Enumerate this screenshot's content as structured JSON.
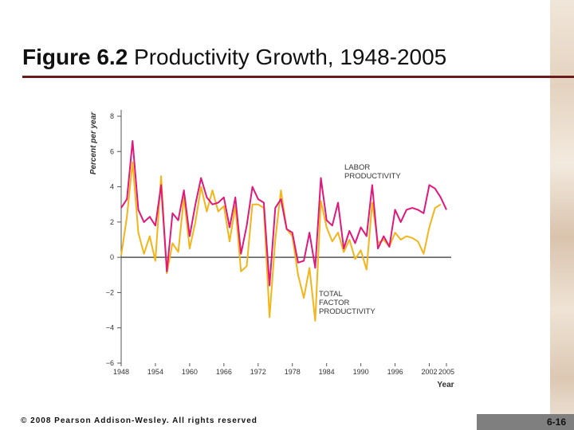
{
  "slide": {
    "title_bold": "Figure 6.2",
    "title_rest": " Productivity Growth, 1948-2005",
    "copyright": "© 2008 Pearson Addison-Wesley. All rights reserved",
    "slide_number": "6-16"
  },
  "colors": {
    "labor": "#e0187c",
    "tfp": "#f2b51a",
    "axis": "#555555",
    "title_rule": "#6b1b1b"
  },
  "chart_data": {
    "type": "line",
    "title": "",
    "xlabel": "Year",
    "ylabel": "Percent per year",
    "xlim": [
      1948,
      2005
    ],
    "ylim": [
      -6,
      8
    ],
    "x_ticks": [
      1948,
      1954,
      1960,
      1966,
      1972,
      1978,
      1984,
      1990,
      1996,
      2002,
      2005
    ],
    "y_ticks": [
      8,
      6,
      4,
      2,
      0,
      -2,
      -4,
      -6
    ],
    "y_tick_labels": [
      "8",
      "6",
      "4",
      "2",
      "0",
      "−2",
      "−4",
      "−6"
    ],
    "series": [
      {
        "name": "LABOR PRODUCTIVITY",
        "label_lines": [
          "LABOR",
          "PRODUCTIVITY"
        ],
        "x": [
          1948,
          1949,
          1950,
          1951,
          1952,
          1953,
          1954,
          1955,
          1956,
          1957,
          1958,
          1959,
          1960,
          1961,
          1962,
          1963,
          1964,
          1965,
          1966,
          1967,
          1968,
          1969,
          1970,
          1971,
          1972,
          1973,
          1974,
          1975,
          1976,
          1977,
          1978,
          1979,
          1980,
          1981,
          1982,
          1983,
          1984,
          1985,
          1986,
          1987,
          1988,
          1989,
          1990,
          1991,
          1992,
          1993,
          1994,
          1995,
          1996,
          1997,
          1998,
          1999,
          2000,
          2001,
          2002,
          2003,
          2004,
          2005
        ],
        "values": [
          2.8,
          3.3,
          6.6,
          2.7,
          2.0,
          2.3,
          1.8,
          4.1,
          -0.8,
          2.5,
          2.1,
          3.8,
          1.2,
          3.0,
          4.5,
          3.4,
          3.0,
          3.1,
          3.4,
          1.7,
          3.4,
          0.2,
          1.8,
          4.0,
          3.3,
          3.1,
          -1.6,
          2.8,
          3.3,
          1.6,
          1.4,
          -0.3,
          -0.2,
          1.4,
          -0.6,
          4.5,
          2.1,
          1.8,
          3.1,
          0.5,
          1.5,
          0.8,
          1.7,
          1.2,
          4.1,
          0.5,
          1.2,
          0.6,
          2.7,
          2.0,
          2.7,
          2.8,
          2.7,
          2.5,
          4.1,
          3.9,
          3.4,
          2.7
        ]
      },
      {
        "name": "TOTAL FACTOR PRODUCTIVITY",
        "label_lines": [
          "TOTAL",
          "FACTOR",
          "PRODUCTIVITY"
        ],
        "x": [
          1948,
          1949,
          1950,
          1951,
          1952,
          1953,
          1954,
          1955,
          1956,
          1957,
          1958,
          1959,
          1960,
          1961,
          1962,
          1963,
          1964,
          1965,
          1966,
          1967,
          1968,
          1969,
          1970,
          1971,
          1972,
          1973,
          1974,
          1975,
          1976,
          1977,
          1978,
          1979,
          1980,
          1981,
          1982,
          1983,
          1984,
          1985,
          1986,
          1987,
          1988,
          1989,
          1990,
          1991,
          1992,
          1993,
          1994,
          1995,
          1996,
          1997,
          1998,
          1999,
          2000,
          2001,
          2002,
          2003,
          2004,
          2005
        ],
        "values": [
          0.1,
          2.3,
          5.4,
          1.4,
          0.2,
          1.2,
          -0.2,
          4.6,
          -0.9,
          0.8,
          0.3,
          3.4,
          0.5,
          2.0,
          4.0,
          2.6,
          3.8,
          2.6,
          2.9,
          0.9,
          2.9,
          -0.8,
          -0.5,
          3.0,
          3.0,
          2.8,
          -3.4,
          1.0,
          3.8,
          1.6,
          1.2,
          -1.0,
          -2.3,
          -0.6,
          -3.6,
          3.2,
          1.7,
          0.9,
          1.4,
          0.3,
          1.0,
          -0.1,
          0.4,
          -0.7,
          3.1,
          0.8,
          1.0,
          0.6,
          1.4,
          1.0,
          1.2,
          1.1,
          0.9,
          0.2,
          1.7,
          2.8,
          3.0,
          null
        ]
      }
    ]
  }
}
